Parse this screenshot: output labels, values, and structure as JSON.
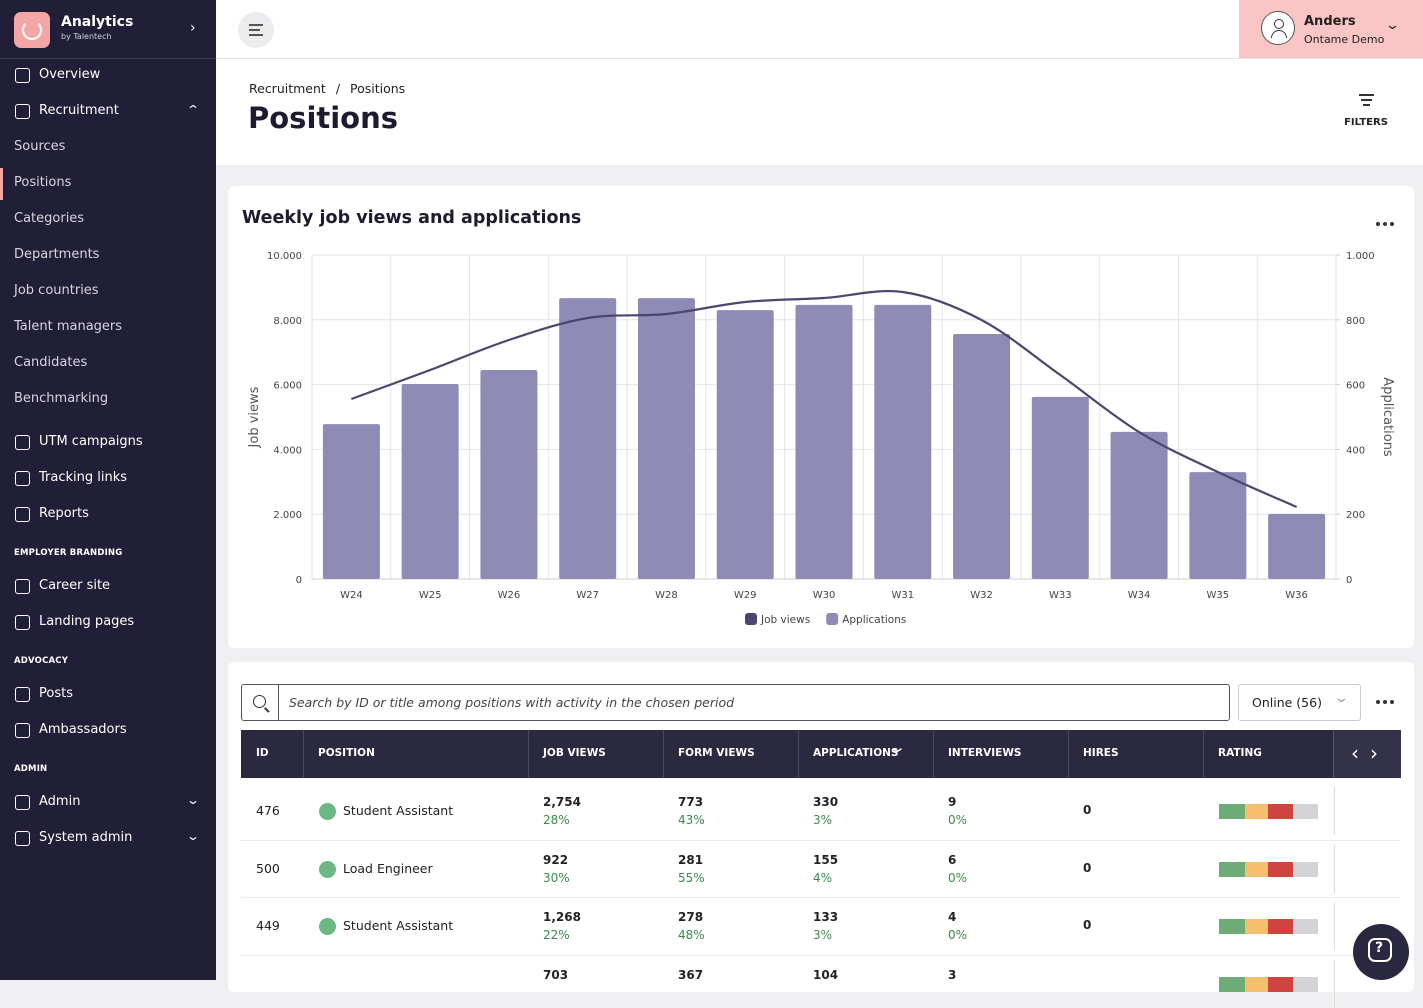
{
  "sidebar": {
    "brand": "Analytics",
    "brand_sub": "by Talentech",
    "nav": [
      {
        "label": "Overview",
        "kind": "item"
      },
      {
        "label": "Recruitment",
        "kind": "item",
        "chevron": "up"
      },
      {
        "label": "Sources",
        "kind": "sub"
      },
      {
        "label": "Positions",
        "kind": "sub",
        "active": true
      },
      {
        "label": "Categories",
        "kind": "sub"
      },
      {
        "label": "Departments",
        "kind": "sub"
      },
      {
        "label": "Job countries",
        "kind": "sub"
      },
      {
        "label": "Talent managers",
        "kind": "sub"
      },
      {
        "label": "Candidates",
        "kind": "sub"
      },
      {
        "label": "Benchmarking",
        "kind": "sub"
      },
      {
        "label": "UTM campaigns",
        "kind": "item"
      },
      {
        "label": "Tracking links",
        "kind": "item"
      },
      {
        "label": "Reports",
        "kind": "item"
      },
      {
        "label": "EMPLOYER BRANDING",
        "kind": "heading"
      },
      {
        "label": "Career site",
        "kind": "item"
      },
      {
        "label": "Landing pages",
        "kind": "item"
      },
      {
        "label": "ADVOCACY",
        "kind": "heading"
      },
      {
        "label": "Posts",
        "kind": "item"
      },
      {
        "label": "Ambassadors",
        "kind": "item"
      },
      {
        "label": "ADMIN",
        "kind": "heading"
      },
      {
        "label": "Admin",
        "kind": "item",
        "chevron": "down"
      },
      {
        "label": "System admin",
        "kind": "item",
        "chevron": "down"
      }
    ]
  },
  "user": {
    "name": "Anders",
    "org": "Ontame Demo"
  },
  "header": {
    "breadcrumb": [
      "Recruitment",
      "Positions"
    ],
    "separator": "/",
    "title": "Positions",
    "filters": "FILTERS"
  },
  "chart_data": {
    "type": "bar",
    "title": "Weekly job views and applications",
    "ylabel": "Job views",
    "y2label": "Applications",
    "categories": [
      "W24",
      "W25",
      "W26",
      "W27",
      "W28",
      "W29",
      "W30",
      "W31",
      "W32",
      "W33",
      "W34",
      "W35",
      "W36"
    ],
    "series": [
      {
        "name": "Job views",
        "type": "line",
        "axis": "y",
        "color": "#4b4570",
        "values": [
          5556,
          6451,
          7377,
          8056,
          8179,
          8549,
          8673,
          8858,
          7994,
          6296,
          4537,
          3302,
          2222
        ]
      },
      {
        "name": "Applications",
        "type": "bar",
        "axis": "y2",
        "color": "#8e8bb5",
        "values": [
          478,
          602,
          645,
          867,
          867,
          830,
          846,
          846,
          756,
          562,
          454,
          330,
          201
        ]
      }
    ],
    "ylim": [
      0,
      10000
    ],
    "yticks": [
      0,
      {
        "value": 2000,
        "label": "2.000"
      },
      {
        "value": 4000,
        "label": "4.000"
      },
      {
        "value": 6000,
        "label": "6.000"
      },
      {
        "value": 8000,
        "label": "8.000"
      },
      {
        "value": 10000,
        "label": "10.000"
      }
    ],
    "y2lim": [
      0,
      1000
    ],
    "y2ticks": [
      0,
      200,
      400,
      600,
      800,
      {
        "value": 1000,
        "label": "1.000"
      }
    ],
    "grid": true,
    "legend": "bottom"
  },
  "table": {
    "search_placeholder": "Search by ID or title among positions with activity in the chosen period",
    "status_filter": "Online (56)",
    "columns": [
      "ID",
      "POSITION",
      "JOB VIEWS",
      "FORM VIEWS",
      "APPLICATIONS",
      "INTERVIEWS",
      "HIRES",
      "RATING"
    ],
    "sorted_column": 4,
    "rows": [
      {
        "id": "476",
        "position": "Student Assistant",
        "job_views": {
          "value": "2,754",
          "share": "28%"
        },
        "form_views": {
          "value": "773",
          "share": "43%"
        },
        "applications": {
          "value": "330",
          "share": "3%"
        },
        "interviews": {
          "value": "9",
          "share": "0%"
        },
        "hires": "0"
      },
      {
        "id": "500",
        "position": "Load Engineer",
        "job_views": {
          "value": "922",
          "share": "30%"
        },
        "form_views": {
          "value": "281",
          "share": "55%"
        },
        "applications": {
          "value": "155",
          "share": "4%"
        },
        "interviews": {
          "value": "6",
          "share": "0%"
        },
        "hires": "0"
      },
      {
        "id": "449",
        "position": "Student Assistant",
        "job_views": {
          "value": "1,268",
          "share": "22%"
        },
        "form_views": {
          "value": "278",
          "share": "48%"
        },
        "applications": {
          "value": "133",
          "share": "3%"
        },
        "interviews": {
          "value": "4",
          "share": "0%"
        },
        "hires": "0"
      },
      {
        "job_views": {
          "value": "703"
        },
        "form_views": {
          "value": "367"
        },
        "applications": {
          "value": "104"
        },
        "interviews": {
          "value": "3"
        }
      }
    ]
  }
}
